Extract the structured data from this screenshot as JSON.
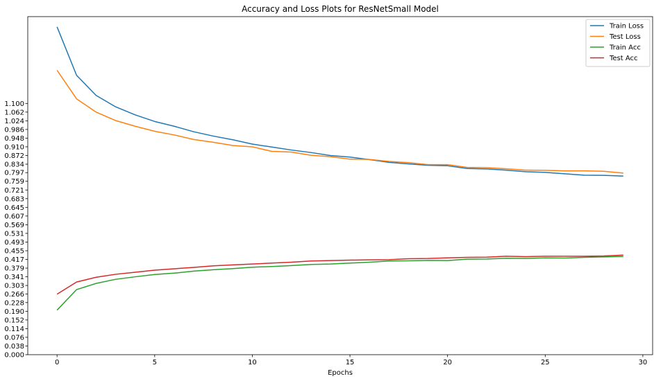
{
  "chart_data": {
    "type": "line",
    "title": "Accuracy and Loss Plots for ResNetSmall Model",
    "xlabel": "Epochs",
    "ylabel": "",
    "xlim": [
      -1.5,
      30.5
    ],
    "ylim": [
      0.0,
      1.48
    ],
    "x_ticks": [
      0,
      5,
      10,
      15,
      20,
      25,
      30
    ],
    "y_ticks": [
      "0.000",
      "0.038",
      "0.076",
      "0.114",
      "0.152",
      "0.190",
      "0.228",
      "0.266",
      "0.303",
      "0.341",
      "0.379",
      "0.417",
      "0.455",
      "0.493",
      "0.531",
      "0.569",
      "0.607",
      "0.645",
      "0.683",
      "0.721",
      "0.759",
      "0.797",
      "0.834",
      "0.872",
      "0.910",
      "0.948",
      "0.986",
      "1.024",
      "1.062",
      "1.100"
    ],
    "legend_position": "top-right",
    "grid": false,
    "x": [
      0,
      1,
      2,
      3,
      4,
      5,
      6,
      7,
      8,
      9,
      10,
      11,
      12,
      13,
      14,
      15,
      16,
      17,
      18,
      19,
      20,
      21,
      22,
      23,
      24,
      25,
      26,
      27,
      28,
      29
    ],
    "series": [
      {
        "name": "Train Loss",
        "color": "#1f77b4",
        "values": [
          1.435,
          1.223,
          1.135,
          1.085,
          1.05,
          1.021,
          1.0,
          0.976,
          0.957,
          0.941,
          0.922,
          0.909,
          0.896,
          0.885,
          0.872,
          0.865,
          0.854,
          0.842,
          0.835,
          0.829,
          0.827,
          0.815,
          0.813,
          0.808,
          0.801,
          0.798,
          0.792,
          0.786,
          0.785,
          0.782
        ]
      },
      {
        "name": "Test Loss",
        "color": "#ff7f0e",
        "values": [
          1.245,
          1.12,
          1.062,
          1.025,
          1.0,
          0.978,
          0.962,
          0.942,
          0.93,
          0.916,
          0.91,
          0.89,
          0.887,
          0.873,
          0.867,
          0.856,
          0.855,
          0.846,
          0.841,
          0.832,
          0.832,
          0.82,
          0.819,
          0.814,
          0.808,
          0.807,
          0.805,
          0.805,
          0.803,
          0.795
        ]
      },
      {
        "name": "Train Acc",
        "color": "#2ca02c",
        "values": [
          0.195,
          0.285,
          0.312,
          0.33,
          0.341,
          0.351,
          0.357,
          0.366,
          0.372,
          0.377,
          0.383,
          0.386,
          0.39,
          0.395,
          0.397,
          0.401,
          0.405,
          0.41,
          0.411,
          0.413,
          0.412,
          0.418,
          0.419,
          0.422,
          0.421,
          0.424,
          0.423,
          0.426,
          0.428,
          0.43
        ]
      },
      {
        "name": "Test Acc",
        "color": "#d62728",
        "values": [
          0.265,
          0.318,
          0.339,
          0.352,
          0.361,
          0.37,
          0.376,
          0.382,
          0.389,
          0.393,
          0.397,
          0.401,
          0.405,
          0.41,
          0.412,
          0.414,
          0.415,
          0.416,
          0.42,
          0.421,
          0.424,
          0.426,
          0.427,
          0.431,
          0.429,
          0.431,
          0.431,
          0.431,
          0.432,
          0.436
        ]
      }
    ]
  }
}
